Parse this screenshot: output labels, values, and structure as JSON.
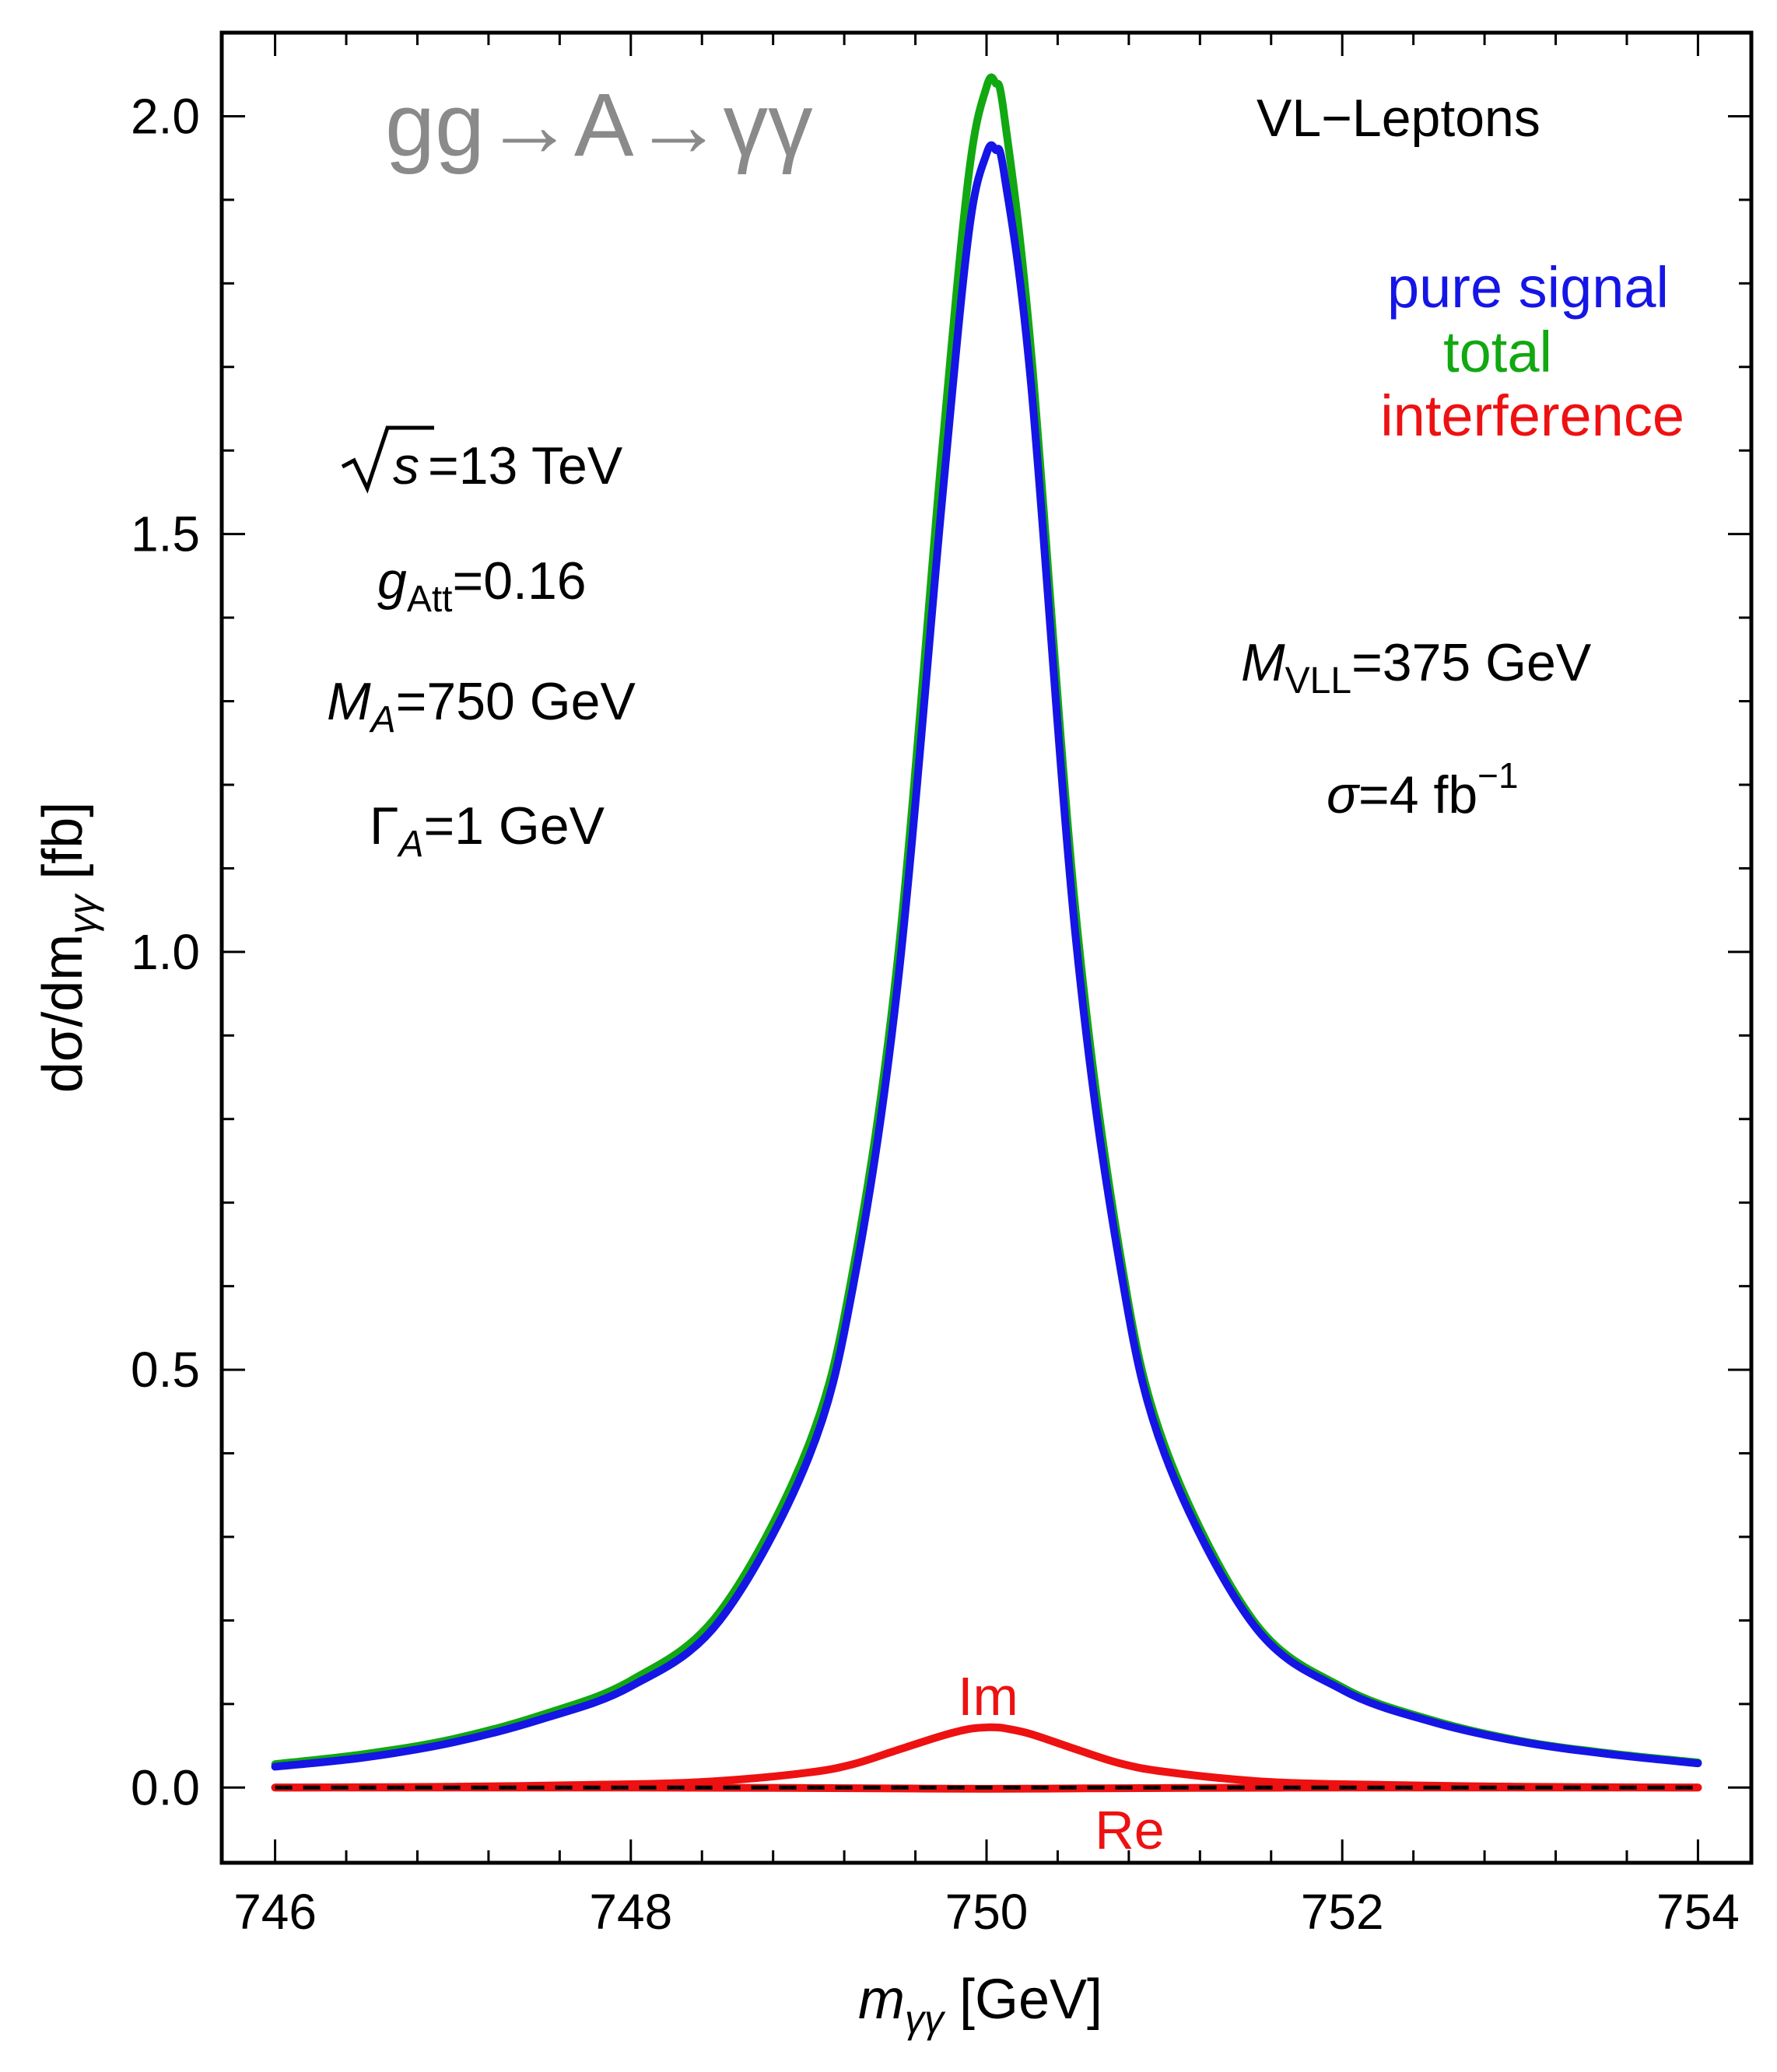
{
  "chart_data": {
    "type": "line",
    "title": "gg→A→γγ",
    "xlabel": {
      "main": "m",
      "sub": "γγ",
      "unit": " [GeV]"
    },
    "ylabel": {
      "main": "dσ/dm",
      "sub": "γγ",
      "unit": " [fb]"
    },
    "xlim": [
      745.7,
      754.3
    ],
    "ylim": [
      -0.09,
      2.1
    ],
    "x_ticks": [
      "746",
      "748",
      "750",
      "752",
      "754"
    ],
    "y_ticks": [
      "0.0",
      "0.5",
      "1.0",
      "1.5",
      "2.0"
    ],
    "x_tick_values": [
      746,
      748,
      750,
      752,
      754
    ],
    "y_tick_values": [
      0.0,
      0.5,
      1.0,
      1.5,
      2.0
    ],
    "legend_placement": "top-right",
    "legend": [
      {
        "label": "pure signal",
        "color": "#1515e6"
      },
      {
        "label": "total",
        "color": "#11a811"
      },
      {
        "label": "interference",
        "color": "#ee1111"
      }
    ],
    "series": [
      {
        "name": "total",
        "color": "#11a811",
        "x": [
          746,
          746.5,
          747,
          747.5,
          748,
          748.5,
          749,
          749.25,
          749.5,
          749.75,
          749.9,
          750,
          750.05,
          750.1,
          750.25,
          750.5,
          750.75,
          751,
          751.5,
          752,
          752.5,
          753,
          753.5,
          754
        ],
        "y": [
          0.028,
          0.04,
          0.058,
          0.087,
          0.128,
          0.21,
          0.41,
          0.62,
          0.99,
          1.6,
          1.93,
          2.035,
          2.04,
          2.0,
          1.72,
          1.05,
          0.64,
          0.41,
          0.2,
          0.12,
          0.081,
          0.056,
          0.041,
          0.03
        ]
      },
      {
        "name": "pure signal",
        "color": "#1515e6",
        "x": [
          746,
          746.5,
          747,
          747.5,
          748,
          748.5,
          749,
          749.25,
          749.5,
          749.75,
          749.9,
          750,
          750.05,
          750.1,
          750.25,
          750.5,
          750.75,
          751,
          751.5,
          752,
          752.5,
          753,
          753.5,
          754
        ],
        "y": [
          0.025,
          0.036,
          0.054,
          0.082,
          0.121,
          0.2,
          0.395,
          0.6,
          0.96,
          1.54,
          1.86,
          1.955,
          1.96,
          1.93,
          1.68,
          1.02,
          0.625,
          0.4,
          0.195,
          0.117,
          0.079,
          0.055,
          0.04,
          0.029
        ]
      },
      {
        "name": "Im",
        "color": "#ee1111",
        "x": [
          746,
          747,
          748,
          748.5,
          749,
          749.25,
          749.5,
          749.75,
          749.9,
          750,
          750.05,
          750.1,
          750.25,
          750.5,
          750.75,
          751,
          751.5,
          752,
          753,
          754
        ],
        "y": [
          0.0,
          0.001,
          0.004,
          0.008,
          0.018,
          0.028,
          0.045,
          0.062,
          0.07,
          0.072,
          0.072,
          0.071,
          0.064,
          0.046,
          0.029,
          0.019,
          0.008,
          0.004,
          0.001,
          0.0
        ]
      },
      {
        "name": "Re",
        "color": "#ee1111",
        "x": [
          746,
          747,
          748,
          749,
          749.5,
          750,
          750.5,
          751,
          752,
          753,
          754
        ],
        "y": [
          0.0,
          0.0,
          0.0,
          -0.0005,
          -0.001,
          -0.0015,
          -0.001,
          -0.0005,
          0.0,
          0.0,
          0.0
        ]
      },
      {
        "name": "",
        "color": "#000000",
        "dashed": true,
        "x": [
          746,
          754
        ],
        "y": [
          0.0,
          0.0
        ]
      }
    ],
    "annotations": {
      "model": "VL−Leptons",
      "sqrt_s": "=13 TeV",
      "coupling_sub": "Att",
      "coupling": "=0.16",
      "mass": "=750 GeV",
      "width": "=1 GeV",
      "vll_sub": "VLL",
      "vll_mass": "=375 GeV",
      "sigma": "=4 fb",
      "sigma_exp": "−1",
      "im_label": "Im",
      "re_label": "Re"
    }
  }
}
